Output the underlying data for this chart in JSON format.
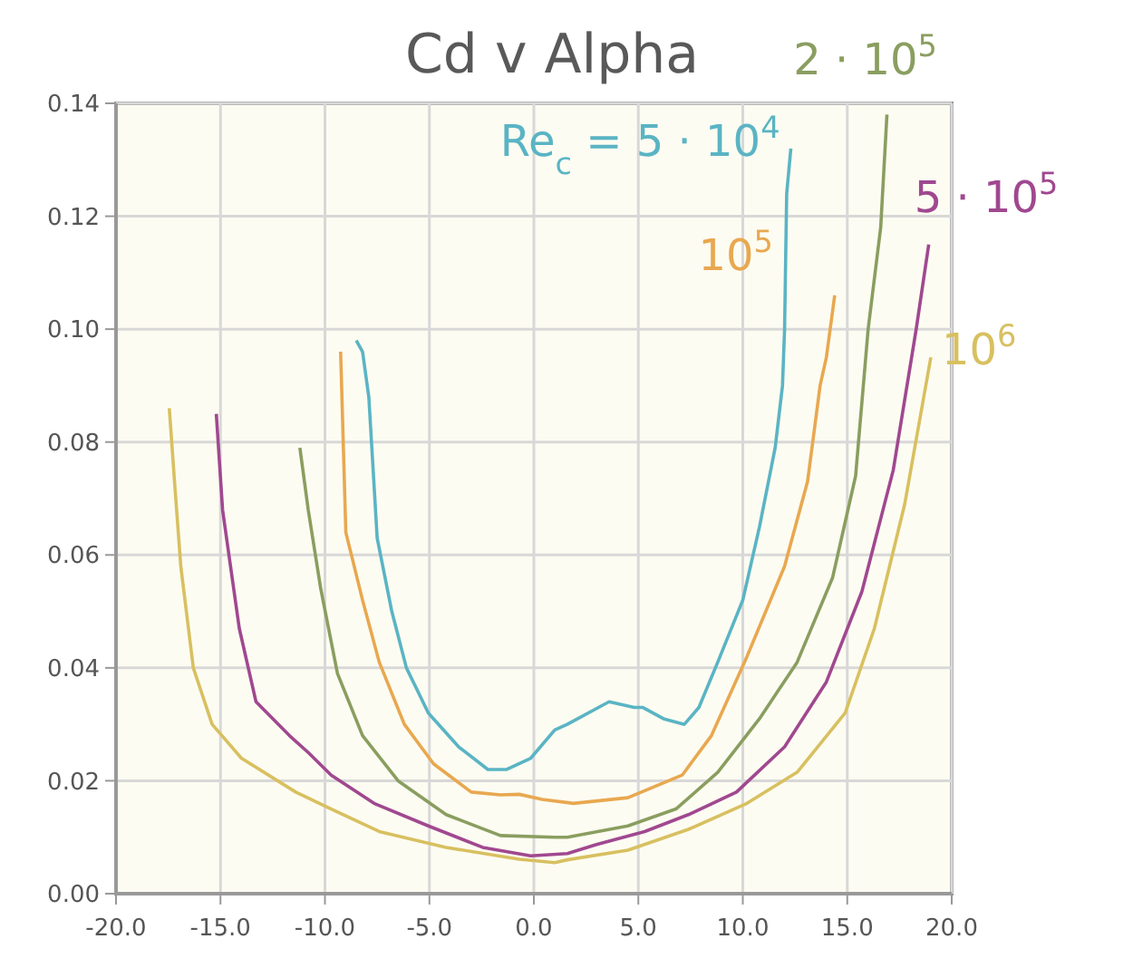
{
  "chart_data": {
    "type": "line",
    "title": "Cd v Alpha",
    "xlim": [
      -20,
      20
    ],
    "ylim": [
      0,
      0.14
    ],
    "xticks": [
      {
        "value": -20,
        "label": "-20.0"
      },
      {
        "value": -15,
        "label": "-15.0"
      },
      {
        "value": -10,
        "label": "-10.0"
      },
      {
        "value": -5,
        "label": "-5.0"
      },
      {
        "value": 0,
        "label": "0.0"
      },
      {
        "value": 5,
        "label": "5.0"
      },
      {
        "value": 10,
        "label": "10.0"
      },
      {
        "value": 15,
        "label": "15.0"
      },
      {
        "value": 20,
        "label": "20.0"
      }
    ],
    "yticks": [
      {
        "value": 0,
        "label": "0.00"
      },
      {
        "value": 0.02,
        "label": "0.02"
      },
      {
        "value": 0.04,
        "label": "0.04"
      },
      {
        "value": 0.06,
        "label": "0.06"
      },
      {
        "value": 0.08,
        "label": "0.08"
      },
      {
        "value": 0.1,
        "label": "0.10"
      },
      {
        "value": 0.12,
        "label": "0.12"
      },
      {
        "value": 0.14,
        "label": "0.14"
      }
    ],
    "grid": true,
    "legend": false,
    "marker": "none",
    "line_style": "solid",
    "series": [
      {
        "name": "Re$_{c}$ = 5 · 10$^{4}$",
        "color": "#5ab4c4",
        "x": [
          -8.5,
          -8.2,
          -7.9,
          -7.5,
          -6.8,
          -6.1,
          -5.05,
          -3.6,
          -2.2,
          -1.3,
          -0.15,
          1.0,
          1.6,
          3.6,
          4.8,
          5.2,
          6.2,
          7.2,
          7.9,
          8.8,
          10.0,
          10.8,
          11.55,
          11.9,
          12.0,
          12.1,
          12.3
        ],
        "values": [
          0.098,
          0.096,
          0.088,
          0.063,
          0.05,
          0.04,
          0.032,
          0.026,
          0.022,
          0.022,
          0.024,
          0.029,
          0.03,
          0.034,
          0.033,
          0.033,
          0.031,
          0.03,
          0.033,
          0.041,
          0.052,
          0.065,
          0.079,
          0.09,
          0.1,
          0.124,
          0.132
        ]
      },
      {
        "name": "10$^{5}$",
        "color": "#e8a850",
        "x": [
          -9.25,
          -9.0,
          -8.2,
          -7.4,
          -6.2,
          -4.8,
          -3.0,
          -1.6,
          -0.7,
          0.4,
          1.9,
          4.5,
          7.1,
          8.5,
          10.2,
          12.0,
          13.1,
          13.7,
          14.0,
          14.4
        ],
        "values": [
          0.096,
          0.064,
          0.052,
          0.041,
          0.03,
          0.023,
          0.018,
          0.0175,
          0.0176,
          0.0167,
          0.016,
          0.017,
          0.021,
          0.028,
          0.042,
          0.058,
          0.073,
          0.09,
          0.095,
          0.106
        ]
      },
      {
        "name": "2 · 10$^{5}$",
        "color": "#8a9e60",
        "x": [
          -11.2,
          -10.8,
          -10.2,
          -9.4,
          -8.2,
          -6.5,
          -4.2,
          -1.6,
          1.0,
          1.6,
          4.5,
          6.8,
          8.8,
          10.8,
          12.6,
          14.3,
          15.4,
          16.0,
          16.6,
          16.9
        ],
        "values": [
          0.079,
          0.068,
          0.054,
          0.039,
          0.028,
          0.02,
          0.014,
          0.0103,
          0.01,
          0.01,
          0.012,
          0.015,
          0.0215,
          0.031,
          0.041,
          0.056,
          0.074,
          0.1,
          0.118,
          0.138
        ]
      },
      {
        "name": "5 · 10$^{5}$",
        "color": "#a04890",
        "x": [
          -15.2,
          -14.9,
          -14.1,
          -13.3,
          -11.7,
          -10.8,
          -9.7,
          -7.65,
          -5.05,
          -2.45,
          -0.15,
          1.6,
          3.0,
          5.3,
          7.4,
          9.7,
          12.0,
          14.0,
          15.7,
          17.2,
          18.3,
          18.9
        ],
        "values": [
          0.085,
          0.068,
          0.047,
          0.034,
          0.028,
          0.025,
          0.021,
          0.016,
          0.012,
          0.0082,
          0.0067,
          0.0071,
          0.0087,
          0.011,
          0.014,
          0.018,
          0.026,
          0.0375,
          0.0535,
          0.075,
          0.1,
          0.115
        ]
      },
      {
        "name": "10$^{6}$",
        "color": "#d8c060",
        "x": [
          -17.45,
          -17.2,
          -16.9,
          -16.3,
          -15.4,
          -14.0,
          -11.4,
          -9.7,
          -7.4,
          -4.2,
          -0.7,
          1.0,
          1.6,
          4.5,
          7.4,
          10.2,
          12.6,
          14.9,
          16.3,
          17.75,
          19.0
        ],
        "values": [
          0.086,
          0.073,
          0.058,
          0.04,
          0.03,
          0.024,
          0.018,
          0.015,
          0.011,
          0.0082,
          0.0061,
          0.0055,
          0.006,
          0.0077,
          0.0114,
          0.016,
          0.0215,
          0.032,
          0.047,
          0.069,
          0.095
        ]
      }
    ]
  }
}
